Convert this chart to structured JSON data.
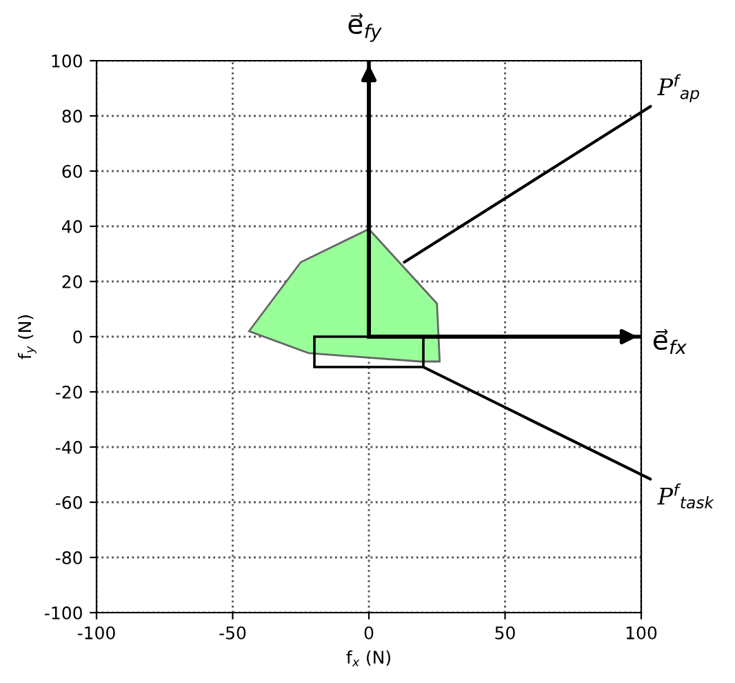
{
  "chart_data": {
    "type": "area",
    "xlabel": "f$_{x}$ (N)",
    "ylabel": "f$_{y}$ (N)",
    "xlim": [
      -100,
      100
    ],
    "ylim": [
      -100,
      100
    ],
    "xticks": [
      -100,
      -50,
      0,
      50,
      100
    ],
    "yticks": [
      -100,
      -80,
      -60,
      -40,
      -20,
      0,
      20,
      40,
      60,
      80,
      100
    ],
    "grid": true,
    "series": [
      {
        "color": "#99ff99",
        "x": [
          0,
          -25,
          -44,
          -22,
          19,
          26,
          25
        ],
        "values": [
          39,
          27,
          2,
          -6,
          -9,
          -9,
          12
        ]
      },
      {
        "type": "bar",
        "color": "#000000",
        "x": [
          0
        ],
        "base": [
          -11
        ],
        "values": [
          11
        ]
      },
      {
        "type": "line",
        "color": "#000000",
        "x": [
          0,
          100
        ],
        "values": [
          0,
          0
        ]
      },
      {
        "type": "line",
        "color": "#000000",
        "x": [
          0,
          0
        ],
        "values": [
          0,
          100
        ]
      }
    ],
    "annotations": [
      {
        "text": "e⃗$_{fx}$",
        "x": 100,
        "y": 0
      },
      {
        "text": "e⃗$_{fy}$",
        "x": 0,
        "y": 100
      },
      {
        "text": "P$^{f}$$_{ap}$",
        "x": 13,
        "y": 27
      },
      {
        "text": "P$^{f}$$_{task}$",
        "x": 20,
        "y": -11
      }
    ]
  }
}
